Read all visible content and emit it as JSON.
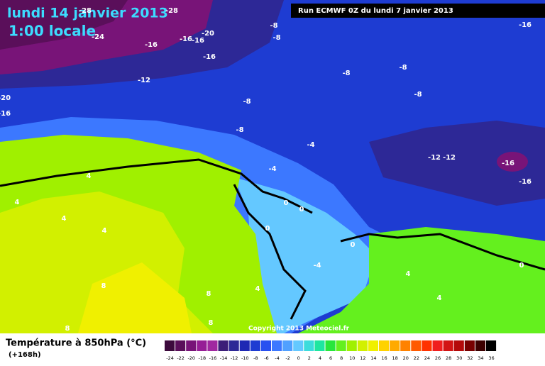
{
  "title": "lundi 14 janvier 2013",
  "subtitle": "1:00 locale",
  "run": "Run ECMWF 0Z du lundi 7 janvier 2013",
  "copyright": "Copyright 2013 Meteociel.fr",
  "legend": {
    "title": "Température à 850hPa (°C)",
    "step": "(+168h)",
    "ticks": [
      -24,
      -22,
      -20,
      -18,
      -16,
      -14,
      -12,
      -10,
      -8,
      -6,
      -4,
      -2,
      0,
      2,
      4,
      6,
      8,
      10,
      12,
      14,
      16,
      18,
      20,
      22,
      24,
      26,
      28,
      30,
      32,
      34,
      36
    ],
    "colors": [
      "#3c0a3c",
      "#5a0f5a",
      "#781478",
      "#961e96",
      "#a028a0",
      "#3c1e78",
      "#2d2896",
      "#1e28b4",
      "#1e3cd2",
      "#2850f0",
      "#3c78ff",
      "#50a0ff",
      "#64c8ff",
      "#3cdcdc",
      "#1ee6a0",
      "#28e63c",
      "#64f01e",
      "#a0f000",
      "#d2f000",
      "#f0f000",
      "#ffd200",
      "#ffaa00",
      "#ff8200",
      "#ff5a00",
      "#ff3200",
      "#f01e1e",
      "#d21414",
      "#b40a0a",
      "#780000",
      "#3c0000",
      "#000000"
    ]
  },
  "map_labels": [
    -28,
    -28,
    -24,
    -20,
    -16,
    -16,
    -16,
    -16,
    -12,
    -20,
    -16,
    -8,
    -8,
    -8,
    -8,
    -8,
    -8,
    -8,
    -4,
    -4,
    -12,
    -12,
    -16,
    -16,
    -16,
    4,
    4,
    4,
    4,
    0,
    0,
    0,
    0,
    -4,
    4,
    8,
    8,
    8,
    8,
    4,
    4,
    0
  ]
}
